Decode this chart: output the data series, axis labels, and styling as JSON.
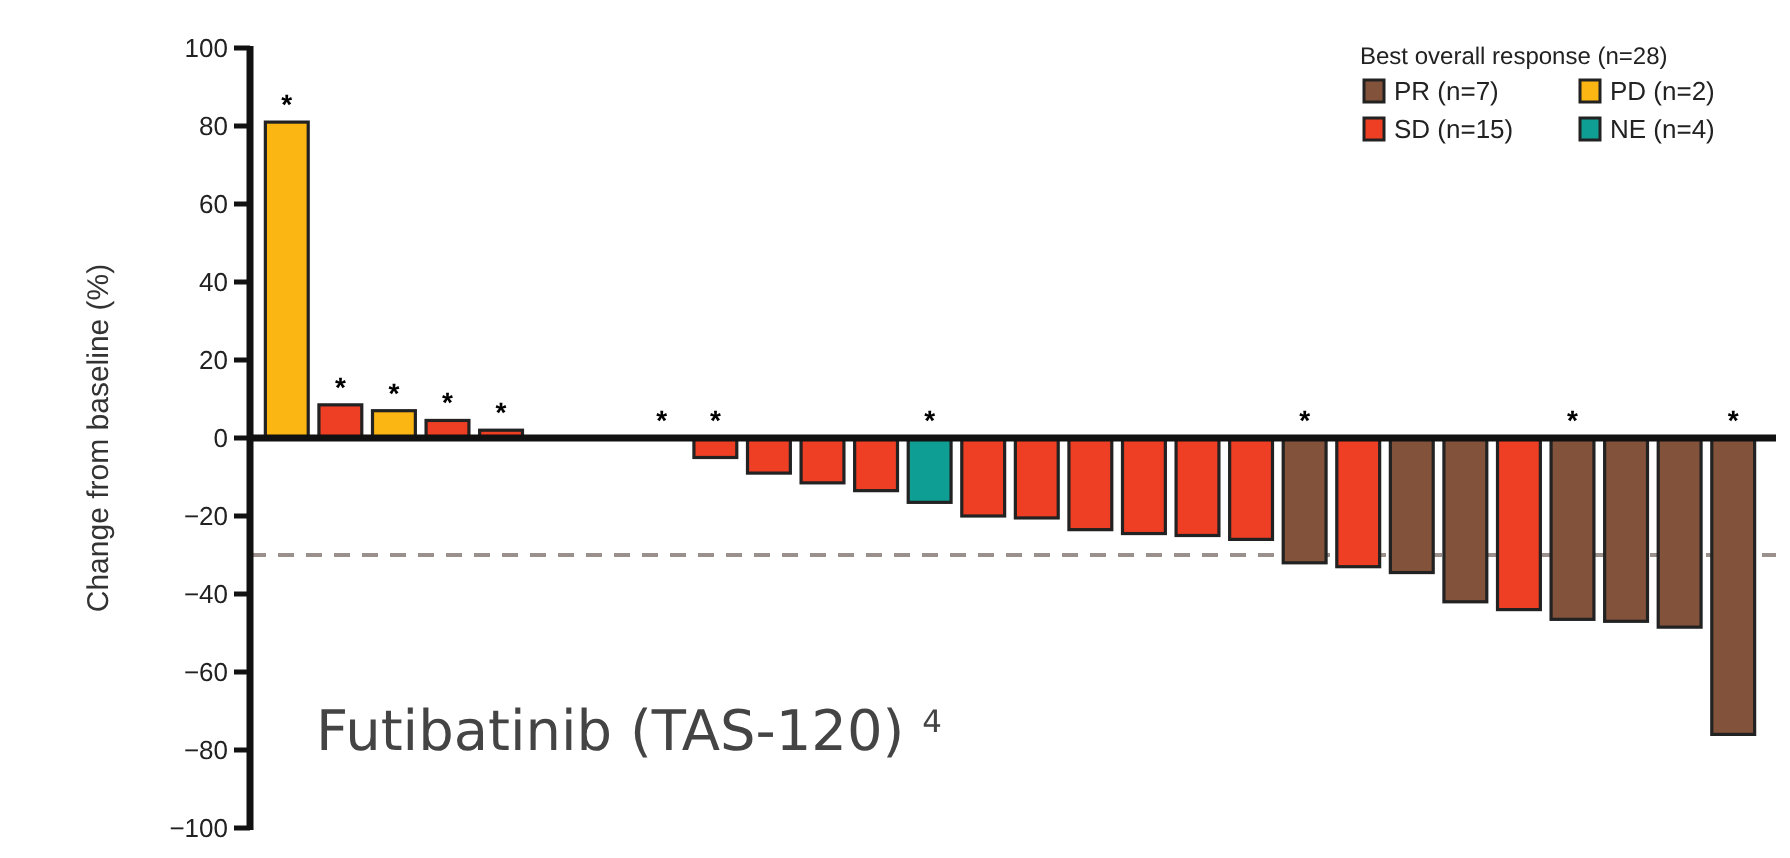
{
  "chart_data": {
    "type": "bar",
    "ylabel": "Change from baseline (%)",
    "legend_title": "Best overall response (n=28)",
    "legend": "top right",
    "categories": [
      null,
      null,
      null,
      null,
      null,
      null,
      null,
      null,
      null,
      null,
      null,
      null,
      null,
      null,
      null,
      null,
      null,
      null,
      null,
      null,
      null,
      null,
      null,
      null,
      null,
      null,
      null,
      null
    ],
    "ylim": [
      -100,
      100
    ],
    "yticks": [
      -100,
      -80,
      -60,
      -40,
      -20,
      0,
      20,
      40,
      60,
      80,
      100
    ],
    "series": [
      {
        "name": "PR (n=7)",
        "color": "#83523a",
        "values": [
          null,
          null,
          null,
          null,
          null,
          null,
          null,
          null,
          null,
          null,
          null,
          null,
          null,
          null,
          null,
          null,
          null,
          null,
          null,
          -32,
          null,
          -34.5,
          -42,
          null,
          -46.5,
          -47,
          -48.5,
          -76
        ],
        "value_labels": [
          null,
          null,
          null,
          null,
          null,
          null,
          null,
          null,
          null,
          null,
          null,
          null,
          null,
          null,
          null,
          null,
          null,
          null,
          null,
          "*",
          null,
          null,
          null,
          null,
          "*",
          null,
          null,
          "*"
        ]
      },
      {
        "name": "PD (n=2)",
        "color": "#fbb614",
        "values": [
          81,
          null,
          7,
          null,
          null,
          null,
          null,
          null,
          null,
          null,
          null,
          null,
          null,
          null,
          null,
          null,
          null,
          null,
          null,
          null,
          null,
          null,
          null,
          null,
          null,
          null,
          null,
          null
        ],
        "value_labels": [
          "*",
          null,
          "*",
          null,
          null,
          null,
          null,
          null,
          null,
          null,
          null,
          null,
          null,
          null,
          null,
          null,
          null,
          null,
          null,
          null,
          null,
          null,
          null,
          null,
          null,
          null,
          null,
          null
        ]
      },
      {
        "name": "SD (n=15)",
        "color": "#ee3e23",
        "values": [
          null,
          8.5,
          null,
          4.5,
          2,
          null,
          null,
          null,
          -5,
          -9,
          -11.5,
          -13.5,
          null,
          -20,
          -20.5,
          -23.5,
          -24.5,
          -25,
          -26,
          null,
          -33,
          null,
          null,
          -44,
          null,
          null,
          null,
          null
        ],
        "value_labels": [
          null,
          "*",
          null,
          "*",
          "*",
          null,
          null,
          null,
          "*",
          null,
          null,
          null,
          null,
          null,
          null,
          null,
          null,
          null,
          null,
          null,
          null,
          null,
          null,
          null,
          null,
          null,
          null,
          null
        ]
      },
      {
        "name": "NE (n=4)",
        "color": "#0e9e93",
        "values": [
          null,
          null,
          null,
          null,
          null,
          0,
          0,
          0,
          null,
          null,
          null,
          null,
          -16.5,
          null,
          null,
          null,
          null,
          null,
          null,
          null,
          null,
          null,
          null,
          null,
          null,
          null,
          null,
          null
        ],
        "value_labels": [
          null,
          null,
          null,
          null,
          null,
          null,
          null,
          "*",
          null,
          null,
          null,
          null,
          "*",
          null,
          null,
          null,
          null,
          null,
          null,
          null,
          null,
          null,
          null,
          null,
          null,
          null,
          null,
          null
        ]
      }
    ],
    "ref_lines": [
      {
        "axis": "y",
        "value": -30,
        "color": "#9a918c",
        "line_style": "dashed"
      }
    ],
    "annotations": [
      "Futibatinib (TAS-120) $^{4}$"
    ]
  }
}
